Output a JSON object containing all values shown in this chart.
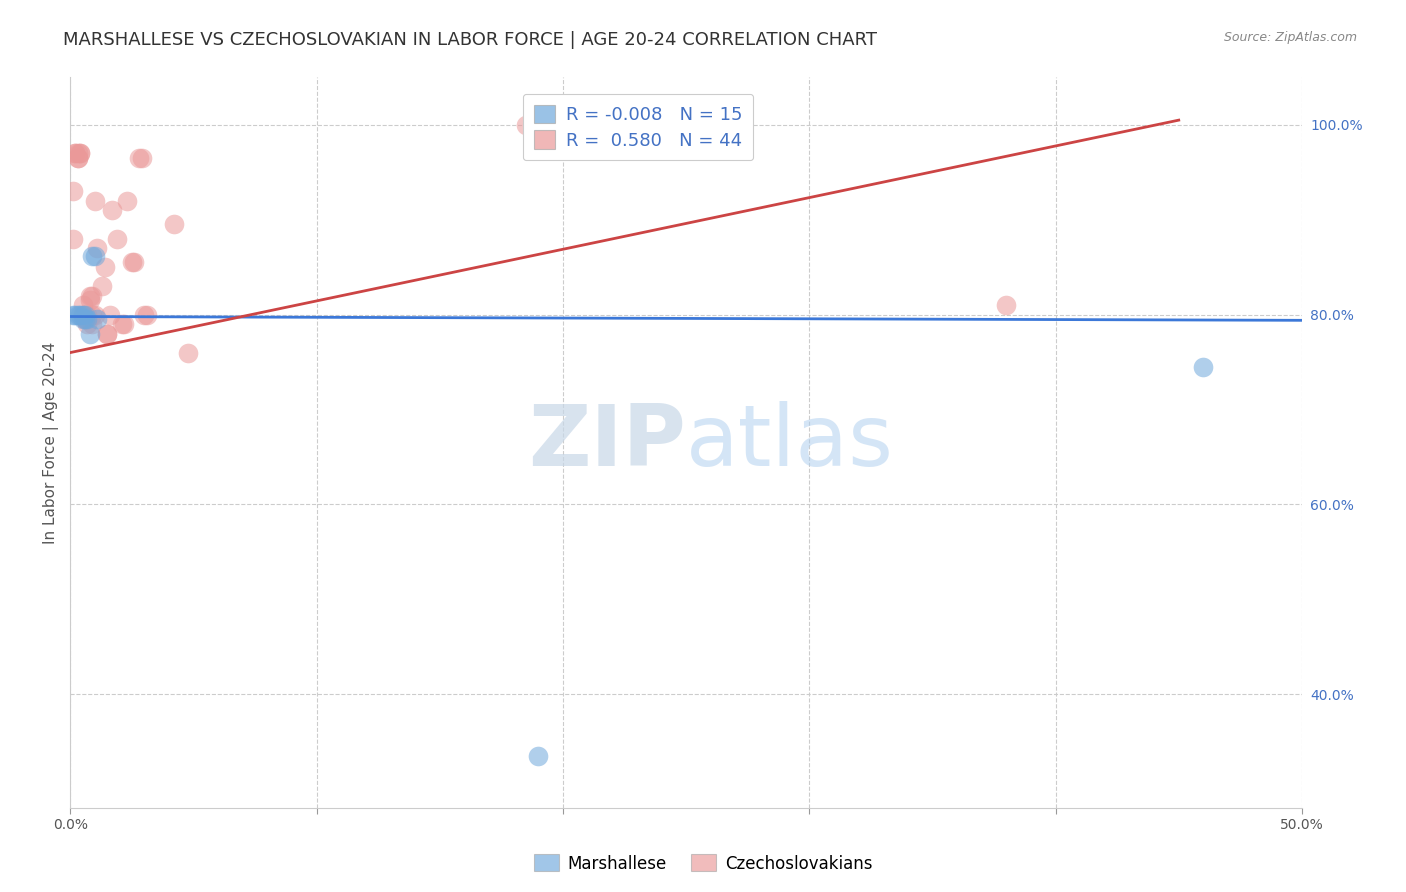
{
  "title": "MARSHALLESE VS CZECHOSLOVAKIAN IN LABOR FORCE | AGE 20-24 CORRELATION CHART",
  "source": "Source: ZipAtlas.com",
  "ylabel": "In Labor Force | Age 20-24",
  "xlim": [
    0.0,
    0.5
  ],
  "ylim": [
    0.28,
    1.05
  ],
  "xticks": [
    0.0,
    0.1,
    0.2,
    0.3,
    0.4,
    0.5
  ],
  "xtick_labels": [
    "0.0%",
    "",
    "",
    "",
    "",
    "50.0%"
  ],
  "yticks": [
    0.4,
    0.6,
    0.8,
    1.0
  ],
  "ytick_labels": [
    "40.0%",
    "60.0%",
    "80.0%",
    "100.0%"
  ],
  "blue_R": "-0.008",
  "blue_N": "15",
  "pink_R": "0.580",
  "pink_N": "44",
  "blue_color": "#6fa8dc",
  "pink_color": "#ea9999",
  "blue_line_color": "#3c78d8",
  "pink_line_color": "#cc4444",
  "watermark_zip": "ZIP",
  "watermark_atlas": "atlas",
  "blue_points_x": [
    0.001,
    0.002,
    0.003,
    0.004,
    0.005,
    0.005,
    0.006,
    0.006,
    0.007,
    0.008,
    0.009,
    0.01,
    0.011,
    0.19,
    0.46
  ],
  "blue_points_y": [
    0.8,
    0.8,
    0.8,
    0.8,
    0.8,
    0.795,
    0.8,
    0.795,
    0.795,
    0.78,
    0.862,
    0.862,
    0.795,
    0.335,
    0.745
  ],
  "pink_points_x": [
    0.001,
    0.001,
    0.002,
    0.002,
    0.003,
    0.003,
    0.003,
    0.004,
    0.004,
    0.005,
    0.005,
    0.005,
    0.006,
    0.006,
    0.007,
    0.007,
    0.008,
    0.008,
    0.009,
    0.009,
    0.009,
    0.01,
    0.01,
    0.011,
    0.013,
    0.014,
    0.015,
    0.015,
    0.016,
    0.017,
    0.019,
    0.021,
    0.022,
    0.023,
    0.025,
    0.026,
    0.028,
    0.029,
    0.03,
    0.031,
    0.042,
    0.048,
    0.185,
    0.38
  ],
  "pink_points_y": [
    0.88,
    0.93,
    0.97,
    0.97,
    0.965,
    0.97,
    0.965,
    0.97,
    0.97,
    0.8,
    0.8,
    0.81,
    0.795,
    0.795,
    0.8,
    0.79,
    0.815,
    0.82,
    0.79,
    0.82,
    0.8,
    0.92,
    0.8,
    0.87,
    0.83,
    0.85,
    0.78,
    0.78,
    0.8,
    0.91,
    0.88,
    0.79,
    0.79,
    0.92,
    0.855,
    0.855,
    0.965,
    0.965,
    0.8,
    0.8,
    0.895,
    0.76,
    1.0,
    0.81
  ],
  "blue_line_x": [
    0.0,
    0.5
  ],
  "blue_line_y": [
    0.798,
    0.794
  ],
  "pink_line_x": [
    0.0,
    0.45
  ],
  "pink_line_y": [
    0.76,
    1.005
  ],
  "grid_color": "#cccccc",
  "background_color": "#ffffff",
  "title_fontsize": 13,
  "axis_label_fontsize": 11,
  "tick_fontsize": 10,
  "legend_fontsize": 13
}
